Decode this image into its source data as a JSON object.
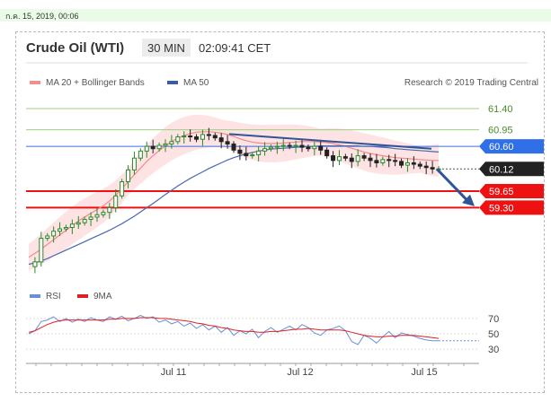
{
  "header": {
    "date": "ก.ค. 15, 2019, 00:06"
  },
  "chart": {
    "title": "Crude Oil (WTI)",
    "timeframe": "30 MIN",
    "time": "02:09:41 CET",
    "legend": [
      {
        "label": "MA 20 + Bollinger Bands",
        "color": "#f08f8f"
      },
      {
        "label": "MA 50",
        "color": "#3b5ba5"
      }
    ],
    "credit": "Research © 2019 Trading Central",
    "colors": {
      "ma50": "#4a68b0",
      "ma20": "#f28a8a",
      "band": "#fde0e0",
      "up": "#2a8a2a",
      "down": "#222222",
      "resistance_line": "#2f5597",
      "support": "#ee1111"
    }
  },
  "chart_data": [
    {
      "type": "line",
      "title": "",
      "x_ticks": [
        "Jul 11",
        "Jul 12",
        "Jul 15"
      ],
      "y_levels": [
        {
          "value": 61.4,
          "label": "61.40",
          "style": "green-line"
        },
        {
          "value": 60.95,
          "label": "60.95",
          "style": "green-line"
        },
        {
          "value": 60.6,
          "label": "60.60",
          "style": "blue-tag"
        },
        {
          "value": 60.12,
          "label": "60.12",
          "style": "black-tag"
        },
        {
          "value": 59.65,
          "label": "59.65",
          "style": "red-tag"
        },
        {
          "value": 59.3,
          "label": "59.30",
          "style": "red-tag"
        }
      ],
      "ylim": [
        57.9,
        61.8
      ],
      "series": [
        {
          "name": "MA 50",
          "values": [
            58.1,
            58.13,
            58.17,
            58.22,
            58.28,
            58.34,
            58.4,
            58.46,
            58.52,
            58.58,
            58.64,
            58.7,
            58.76,
            58.82,
            58.89,
            58.96,
            59.04,
            59.12,
            59.21,
            59.3,
            59.39,
            59.48,
            59.58,
            59.67,
            59.76,
            59.84,
            59.92,
            59.99,
            60.06,
            60.13,
            60.19,
            60.25,
            60.31,
            60.36,
            60.4,
            60.44,
            60.47,
            60.5,
            60.52,
            60.54,
            60.55,
            60.56,
            60.57,
            60.58,
            60.59,
            60.6,
            60.6,
            60.61,
            60.61,
            60.61,
            60.61,
            60.61,
            60.61,
            60.61,
            60.6,
            60.6,
            60.59,
            60.58,
            60.57,
            60.55,
            60.54,
            60.53,
            60.52,
            60.51,
            60.5,
            60.49,
            60.48
          ]
        },
        {
          "name": "MA 20",
          "values": [
            58.25,
            58.33,
            58.42,
            58.52,
            58.62,
            58.72,
            58.82,
            58.92,
            59.02,
            59.1,
            59.18,
            59.26,
            59.34,
            59.44,
            59.56,
            59.7,
            59.85,
            60.0,
            60.14,
            60.28,
            60.4,
            60.51,
            60.61,
            60.7,
            60.77,
            60.83,
            60.87,
            60.9,
            60.91,
            60.91,
            60.9,
            60.88,
            60.85,
            60.81,
            60.76,
            60.72,
            60.69,
            60.67,
            60.66,
            60.66,
            60.66,
            60.67,
            60.68,
            60.69,
            60.7,
            60.7,
            60.7,
            60.69,
            60.68,
            60.66,
            60.63,
            60.6,
            60.56,
            60.52,
            60.48,
            60.45,
            60.42,
            60.4,
            60.38,
            60.36,
            60.35,
            60.34,
            60.33,
            60.32,
            60.31,
            60.3,
            60.3
          ]
        },
        {
          "name": "Price",
          "values": [
            58.05,
            58.15,
            58.65,
            58.7,
            58.8,
            58.85,
            58.88,
            58.95,
            58.98,
            59.05,
            59.1,
            59.15,
            59.2,
            59.3,
            59.55,
            59.85,
            60.1,
            60.35,
            60.5,
            60.6,
            60.55,
            60.62,
            60.65,
            60.7,
            60.8,
            60.82,
            60.8,
            60.75,
            60.85,
            60.83,
            60.78,
            60.7,
            60.65,
            60.52,
            60.45,
            60.4,
            60.42,
            60.5,
            60.55,
            60.58,
            60.6,
            60.62,
            60.6,
            60.62,
            60.58,
            60.55,
            60.6,
            60.52,
            60.4,
            60.3,
            60.38,
            60.35,
            60.28,
            60.4,
            60.35,
            60.3,
            60.25,
            60.32,
            60.3,
            60.28,
            60.2,
            60.25,
            60.22,
            60.18,
            60.15,
            60.12,
            60.12
          ]
        }
      ],
      "trendline": {
        "from": [
          0.0,
          60.86
        ],
        "to": [
          1.0,
          60.55
        ]
      }
    },
    {
      "type": "line",
      "title": "",
      "legend": [
        {
          "label": "RSI",
          "color": "#6a8fd6"
        },
        {
          "label": "9MA",
          "color": "#e02020"
        }
      ],
      "y_ticks": [
        "70",
        "50",
        "30"
      ],
      "ylim": [
        15,
        85
      ],
      "series": [
        {
          "name": "RSI",
          "values": [
            50,
            54,
            66,
            68,
            72,
            66,
            70,
            65,
            69,
            66,
            71,
            68,
            66,
            72,
            69,
            73,
            67,
            70,
            74,
            70,
            72,
            65,
            68,
            63,
            66,
            60,
            64,
            57,
            62,
            55,
            60,
            52,
            58,
            48,
            54,
            50,
            56,
            45,
            53,
            58,
            52,
            56,
            60,
            55,
            62,
            58,
            51,
            48,
            55,
            57,
            60,
            54,
            40,
            36,
            48,
            44,
            38,
            46,
            53,
            45,
            51,
            49,
            47,
            44,
            42,
            41,
            41
          ]
        },
        {
          "name": "9MA",
          "values": [
            52,
            54,
            58,
            62,
            65,
            67,
            68,
            68,
            68,
            68,
            68,
            68,
            68,
            69,
            69,
            70,
            70,
            70,
            71,
            71,
            71,
            70,
            70,
            69,
            68,
            67,
            66,
            64,
            63,
            61,
            60,
            58,
            57,
            55,
            54,
            53,
            53,
            52,
            52,
            53,
            53,
            54,
            55,
            56,
            56,
            57,
            56,
            55,
            55,
            55,
            55,
            54,
            52,
            50,
            48,
            47,
            46,
            46,
            47,
            47,
            48,
            48,
            48,
            47,
            46,
            45,
            44
          ]
        }
      ]
    }
  ]
}
